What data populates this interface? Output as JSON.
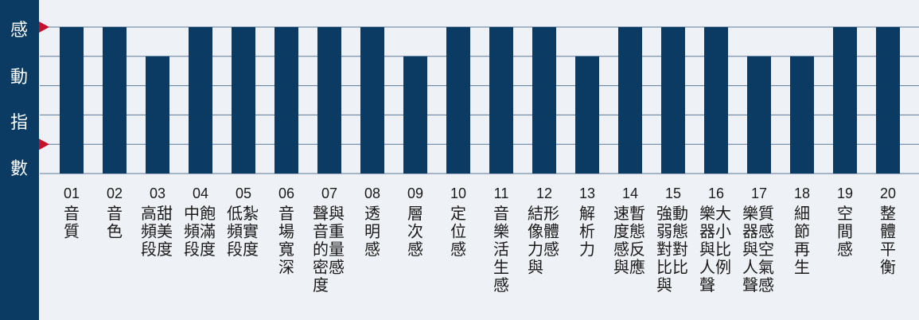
{
  "chart_data": {
    "type": "bar",
    "ylabel_chars": [
      "感",
      "動",
      "指",
      "數"
    ],
    "ylim": [
      0,
      5
    ],
    "grid": true,
    "categories": [
      {
        "num": "01",
        "label": [
          "音質"
        ]
      },
      {
        "num": "02",
        "label": [
          "音色"
        ]
      },
      {
        "num": "03",
        "label": [
          "高甜",
          "頻美",
          "段度"
        ]
      },
      {
        "num": "04",
        "label": [
          "中飽",
          "頻滿",
          "段度"
        ]
      },
      {
        "num": "05",
        "label": [
          "低紮",
          "頻實",
          "段度"
        ]
      },
      {
        "num": "06",
        "label": [
          "音場寬深"
        ]
      },
      {
        "num": "07",
        "label": [
          "聲與",
          "音重",
          "的量",
          "密感",
          "度"
        ]
      },
      {
        "num": "08",
        "label": [
          "透明感"
        ]
      },
      {
        "num": "09",
        "label": [
          "層次感"
        ]
      },
      {
        "num": "10",
        "label": [
          "定位感"
        ]
      },
      {
        "num": "11",
        "label": [
          "音樂活生感"
        ]
      },
      {
        "num": "12",
        "label": [
          "結形",
          "像體",
          "力感",
          "與"
        ]
      },
      {
        "num": "13",
        "label": [
          "解析力"
        ]
      },
      {
        "num": "14",
        "label": [
          "速暫",
          "度態",
          "感反",
          "與應"
        ]
      },
      {
        "num": "15",
        "label": [
          "強動",
          "弱態",
          "對對",
          "比比",
          "與"
        ]
      },
      {
        "num": "16",
        "label": [
          "樂大",
          "器小",
          "與比",
          "人例",
          "聲"
        ]
      },
      {
        "num": "17",
        "label": [
          "樂質",
          "器感",
          "與空",
          "人氣",
          "聲感"
        ]
      },
      {
        "num": "18",
        "label": [
          "細節再生"
        ]
      },
      {
        "num": "19",
        "label": [
          "空間感"
        ]
      },
      {
        "num": "20",
        "label": [
          "整體平衡"
        ]
      }
    ],
    "values": [
      5,
      5,
      4,
      5,
      5,
      5,
      5,
      5,
      4,
      5,
      5,
      5,
      4,
      5,
      5,
      5,
      4,
      4,
      5,
      5
    ],
    "colors": {
      "bar": "#0b3b63",
      "sidebar": "#0b3b63",
      "marker": "#c8102e",
      "grid": "#5d7a99",
      "background": "#eef1f6",
      "text": "#1a1a1a",
      "ylabel_text": "#ffffff"
    }
  }
}
